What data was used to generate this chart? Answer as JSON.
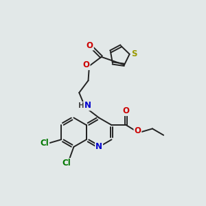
{
  "bg_color": "#e2e8e8",
  "bond_color": "#222222",
  "bond_width": 1.4,
  "atom_colors": {
    "N": "#0000cc",
    "O": "#cc0000",
    "S": "#999900",
    "Cl": "#007700",
    "H": "#444444"
  },
  "font_size": 8.5,
  "font_size_small": 7.5
}
